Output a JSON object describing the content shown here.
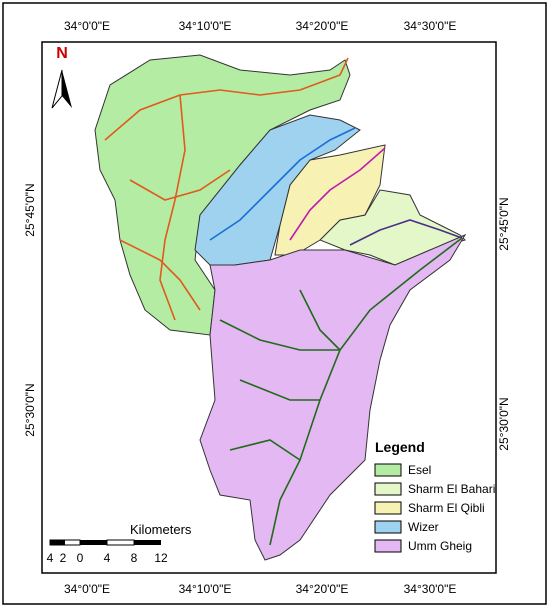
{
  "map": {
    "north": "N",
    "top_labels": [
      "34°0'0\"E",
      "34°10'0\"E",
      "34°20'0\"E",
      "34°30'0\"E"
    ],
    "bottom_labels": [
      "34°0'0\"E",
      "34°10'0\"E",
      "34°20'0\"E",
      "34°30'0\"E"
    ],
    "left_labels": [
      "25°45'0\"N",
      "25°30'0\"N"
    ],
    "right_labels": [
      "25°45'0\"N",
      "25°30'0\"N"
    ],
    "legend": {
      "title": "Legend",
      "items": [
        {
          "label": "Esel",
          "color": "#b4eca4"
        },
        {
          "label": "Sharm El Bahari",
          "color": "#e3f7c8"
        },
        {
          "label": "Sharm El Qibli",
          "color": "#f7f2b4"
        },
        {
          "label": "Wizer",
          "color": "#9fd2ee"
        },
        {
          "label": "Umm Gheig",
          "color": "#e4b8f2"
        }
      ]
    },
    "scale": {
      "title": "Kilometers",
      "ticks": [
        "4",
        "2",
        "0",
        "4",
        "8",
        "12"
      ]
    }
  }
}
